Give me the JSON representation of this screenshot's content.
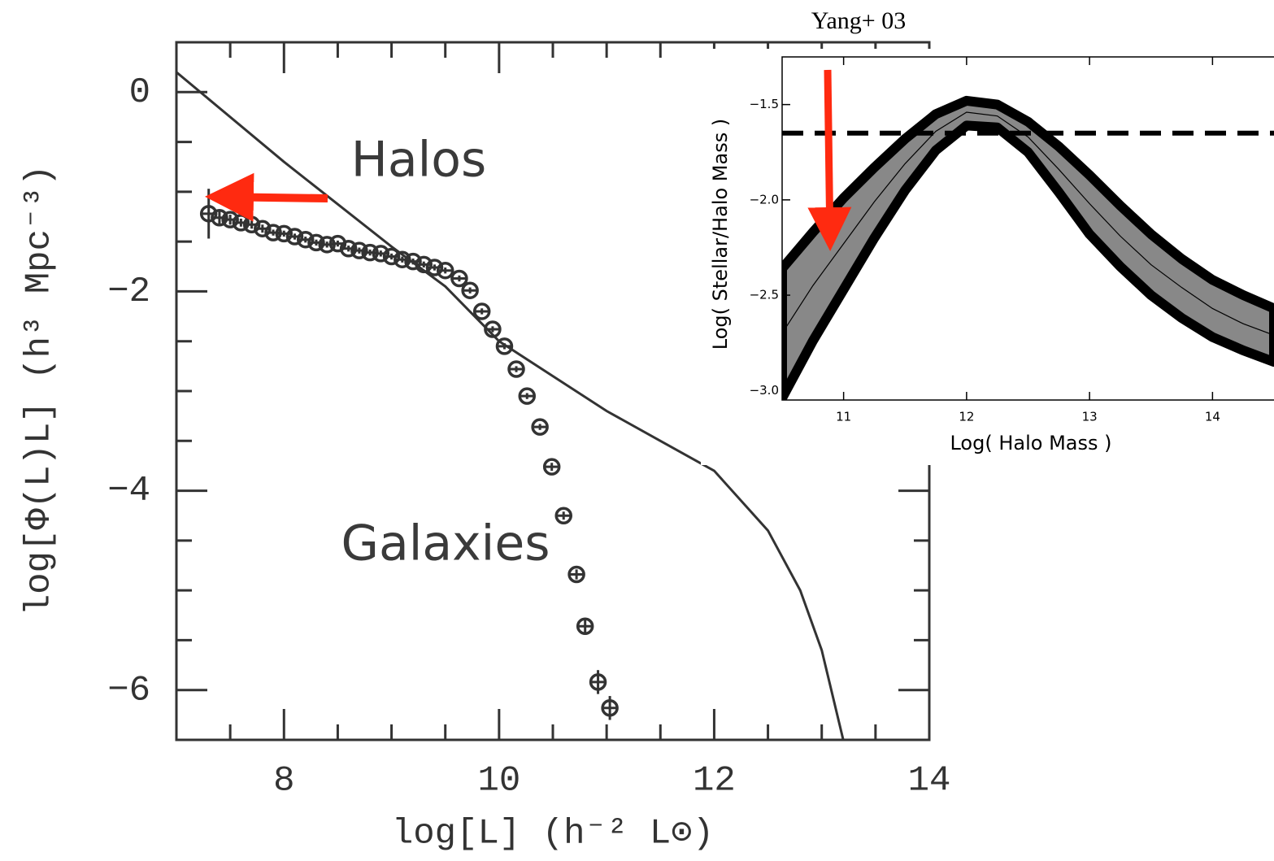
{
  "chart_data": [
    {
      "type": "line",
      "xlabel": "log[L] (h⁻² L⊙)",
      "ylabel": "log[Φ(L)L] (h³ Mpc⁻³)",
      "annotations": [
        "Halos",
        "Galaxies"
      ],
      "xlim": [
        7,
        14
      ],
      "ylim": [
        -6.5,
        0.5
      ],
      "xticks": [
        8,
        10,
        12,
        14
      ],
      "yticks": [
        0,
        {
          "value": -2,
          "label": "−2"
        },
        {
          "value": -4,
          "label": "−4"
        },
        {
          "value": -6,
          "label": "−6"
        }
      ],
      "xminorticks": [
        7.5,
        8.5,
        9,
        9.5,
        10.5,
        11,
        11.5,
        12.5,
        13,
        13.5
      ],
      "yminorticks": [
        -0.5,
        -1,
        -1.5,
        -2.5,
        -3,
        -3.5,
        -4.5,
        -5,
        -5.5
      ],
      "series": [
        {
          "type": "line",
          "color": "#333333",
          "x": [
            7,
            8,
            9,
            9.5,
            10,
            10.5,
            11,
            11.5,
            12,
            12.5,
            12.8,
            13,
            13.2
          ],
          "values": [
            0.2,
            -0.7,
            -1.55,
            -1.95,
            -2.5,
            -2.85,
            -3.2,
            -3.5,
            -3.8,
            -4.4,
            -5.0,
            -5.6,
            -6.5
          ]
        },
        {
          "type": "scatter",
          "color": "#333333",
          "x": [
            7.3,
            7.4,
            7.5,
            7.6,
            7.7,
            7.8,
            7.9,
            8.0,
            8.1,
            8.2,
            8.3,
            8.4,
            8.5,
            8.6,
            8.7,
            8.8,
            8.9,
            9.0,
            9.1,
            9.2,
            9.3,
            9.4,
            9.5,
            9.63,
            9.73,
            9.84,
            9.94,
            10.05,
            10.16,
            10.26,
            10.38,
            10.49,
            10.6,
            10.72,
            10.8,
            10.92,
            11.03
          ],
          "values": [
            -1.22,
            -1.26,
            -1.28,
            -1.31,
            -1.33,
            -1.37,
            -1.41,
            -1.42,
            -1.45,
            -1.48,
            -1.51,
            -1.53,
            -1.52,
            -1.57,
            -1.59,
            -1.61,
            -1.62,
            -1.65,
            -1.68,
            -1.7,
            -1.73,
            -1.76,
            -1.79,
            -1.87,
            -1.99,
            -2.2,
            -2.38,
            -2.55,
            -2.78,
            -3.05,
            -3.36,
            -3.76,
            -4.25,
            -4.84,
            -5.36,
            -5.92,
            -6.18
          ],
          "errors": [
            0.25,
            0.06,
            0.05,
            0.04,
            0.04,
            0.04,
            0.03,
            0.03,
            0.03,
            0.03,
            0.03,
            0.03,
            0.03,
            0.03,
            0.03,
            0.03,
            0.03,
            0.03,
            0.03,
            0.03,
            0.03,
            0.03,
            0.03,
            0.03,
            0.03,
            0.03,
            0.03,
            0.03,
            0.03,
            0.03,
            0.03,
            0.04,
            0.04,
            0.05,
            0.06,
            0.12,
            0.12
          ]
        }
      ]
    },
    {
      "type": "band",
      "title": "Yang+ 03",
      "xlabel": "Log( Halo Mass )",
      "ylabel": "Log( Stellar/Halo Mass )",
      "xlim": [
        10.5,
        14.5
      ],
      "ylim": [
        -3.05,
        -1.25
      ],
      "xticks": [
        11,
        12,
        13,
        14
      ],
      "yticks": [
        {
          "value": -1.5,
          "label": "−1.5"
        },
        {
          "value": -2,
          "label": "−2.0"
        },
        {
          "value": -2.5,
          "label": "−2.5"
        },
        {
          "value": -3,
          "label": "−3.0"
        }
      ],
      "reference_line": -1.65,
      "x": [
        10.5,
        10.75,
        11,
        11.25,
        11.5,
        11.75,
        12,
        12.25,
        12.5,
        12.75,
        13,
        13.25,
        13.5,
        13.75,
        14,
        14.25,
        14.5
      ],
      "upper": [
        -2.36,
        -2.17,
        -1.99,
        -1.83,
        -1.68,
        -1.55,
        -1.48,
        -1.5,
        -1.59,
        -1.72,
        -1.87,
        -2.03,
        -2.18,
        -2.31,
        -2.42,
        -2.5,
        -2.57
      ],
      "lower": [
        -3.04,
        -2.74,
        -2.47,
        -2.2,
        -1.95,
        -1.74,
        -1.61,
        -1.62,
        -1.75,
        -1.96,
        -2.18,
        -2.35,
        -2.5,
        -2.62,
        -2.72,
        -2.79,
        -2.85
      ],
      "values": [
        -2.7,
        -2.45,
        -2.23,
        -2.01,
        -1.81,
        -1.64,
        -1.54,
        -1.56,
        -1.67,
        -1.84,
        -2.02,
        -2.19,
        -2.34,
        -2.46,
        -2.57,
        -2.65,
        -2.71
      ],
      "color": "#888888"
    }
  ]
}
